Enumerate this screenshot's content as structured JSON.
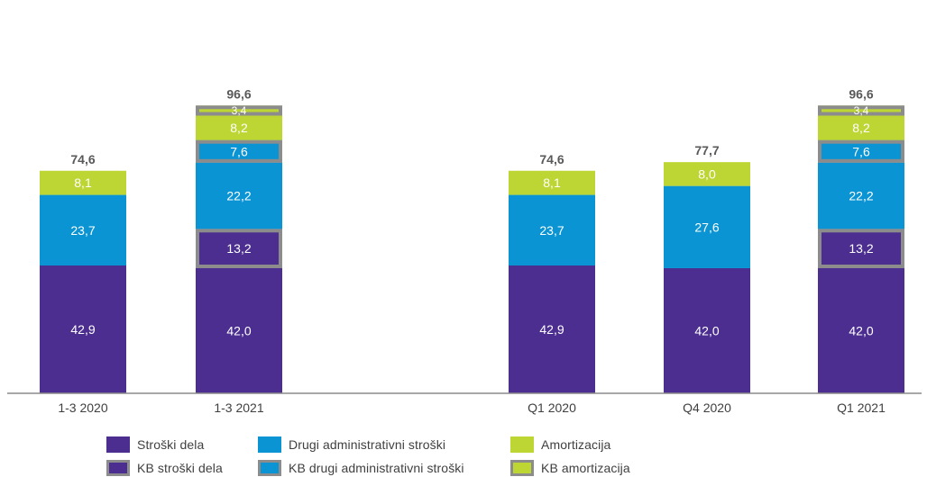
{
  "chart_data": {
    "type": "bar",
    "stacked": true,
    "categories": [
      "1-3 2020",
      "1-3 2021",
      "",
      "Q1 2020",
      "Q4 2020",
      "Q1 2021"
    ],
    "series": [
      {
        "name": "Stroški dela",
        "color": "#4b2e8f",
        "values": [
          42.9,
          42.0,
          null,
          42.9,
          42.0,
          42.0
        ],
        "labels": [
          "42,9",
          "42,0",
          "",
          "42,9",
          "42,0",
          "42,0"
        ]
      },
      {
        "name": "KB stroški dela",
        "color": "#4b2e8f",
        "kb": true,
        "values": [
          0,
          13.2,
          null,
          0,
          0,
          13.2
        ],
        "labels": [
          "",
          "13,2",
          "",
          "",
          "",
          "13,2"
        ]
      },
      {
        "name": "Drugi administrativni stroški",
        "color": "#0a94d3",
        "values": [
          23.7,
          22.2,
          null,
          23.7,
          27.6,
          22.2
        ],
        "labels": [
          "23,7",
          "22,2",
          "",
          "23,7",
          "27,6",
          "22,2"
        ]
      },
      {
        "name": "KB drugi administrativni stroški",
        "color": "#0a94d3",
        "kb": true,
        "values": [
          0,
          7.6,
          null,
          0,
          0,
          7.6
        ],
        "labels": [
          "",
          "7,6",
          "",
          "",
          "",
          "7,6"
        ]
      },
      {
        "name": "Amortizacija",
        "color": "#bdd634",
        "values": [
          8.1,
          8.2,
          null,
          8.1,
          8.0,
          8.2
        ],
        "labels": [
          "8,1",
          "8,2",
          "",
          "8,1",
          "8,0",
          "8,2"
        ]
      },
      {
        "name": "KB amortizacija",
        "color": "#bdd634",
        "kb": true,
        "values": [
          0,
          3.4,
          null,
          0,
          0,
          3.4
        ],
        "labels": [
          "",
          "3,4",
          "",
          "",
          "",
          "3,4"
        ]
      }
    ],
    "totals": [
      74.6,
      96.6,
      null,
      74.6,
      77.7,
      96.6
    ],
    "total_labels": [
      "74,6",
      "96,6",
      "",
      "74,6",
      "77,7",
      "96,6"
    ],
    "ylim": [
      0,
      100
    ],
    "grid": false,
    "legend_position": "bottom",
    "title": "",
    "xlabel": "",
    "ylabel": ""
  },
  "legend": [
    {
      "label": "Stroški dela",
      "color": "#4b2e8f",
      "kb": false
    },
    {
      "label": "Drugi administrativni stroški",
      "color": "#0a94d3",
      "kb": false
    },
    {
      "label": "Amortizacija",
      "color": "#bdd634",
      "kb": false
    },
    {
      "label": "KB stroški dela",
      "color": "#4b2e8f",
      "kb": true
    },
    {
      "label": "KB drugi administrativni stroški",
      "color": "#0a94d3",
      "kb": true
    },
    {
      "label": "KB amortizacija",
      "color": "#bdd634",
      "kb": true
    }
  ]
}
